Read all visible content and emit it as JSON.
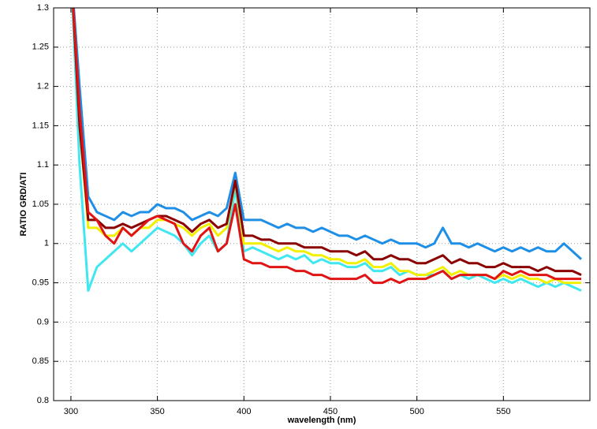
{
  "chart_data": {
    "type": "line",
    "xlabel": "wavelength (nm)",
    "ylabel": "RATIO GRD/ATI",
    "x": [
      300,
      305,
      310,
      315,
      320,
      325,
      330,
      335,
      340,
      345,
      350,
      355,
      360,
      365,
      370,
      375,
      380,
      385,
      390,
      395,
      400,
      405,
      410,
      415,
      420,
      425,
      430,
      435,
      440,
      445,
      450,
      455,
      460,
      465,
      470,
      475,
      480,
      485,
      490,
      495,
      500,
      505,
      510,
      515,
      520,
      525,
      530,
      535,
      540,
      545,
      550,
      555,
      560,
      565,
      570,
      575,
      580,
      585,
      590,
      595
    ],
    "series": [
      {
        "color": "#1e8fe6",
        "values": [
          1.35,
          1.2,
          1.06,
          1.04,
          1.035,
          1.03,
          1.04,
          1.035,
          1.04,
          1.04,
          1.05,
          1.045,
          1.045,
          1.04,
          1.03,
          1.035,
          1.04,
          1.035,
          1.045,
          1.09,
          1.03,
          1.03,
          1.03,
          1.025,
          1.02,
          1.025,
          1.02,
          1.02,
          1.015,
          1.02,
          1.015,
          1.01,
          1.01,
          1.005,
          1.01,
          1.005,
          1.0,
          1.005,
          1.0,
          1.0,
          1.0,
          0.995,
          1.0,
          1.02,
          1.0,
          1.0,
          0.995,
          1.0,
          0.995,
          0.99,
          0.995,
          0.99,
          0.995,
          0.99,
          0.995,
          0.99,
          0.99,
          1.0,
          0.99,
          0.98
        ]
      },
      {
        "color": "#40e6f0",
        "values": [
          1.35,
          1.1,
          0.94,
          0.97,
          0.98,
          0.99,
          1.0,
          0.99,
          1.0,
          1.01,
          1.02,
          1.015,
          1.01,
          1.0,
          0.985,
          1.0,
          1.01,
          0.99,
          1.0,
          1.07,
          0.99,
          0.995,
          0.99,
          0.985,
          0.98,
          0.985,
          0.98,
          0.985,
          0.975,
          0.98,
          0.975,
          0.975,
          0.97,
          0.97,
          0.975,
          0.965,
          0.965,
          0.97,
          0.96,
          0.965,
          0.96,
          0.96,
          0.96,
          0.965,
          0.955,
          0.96,
          0.955,
          0.96,
          0.955,
          0.95,
          0.955,
          0.95,
          0.955,
          0.95,
          0.945,
          0.95,
          0.945,
          0.95,
          0.945,
          0.94
        ]
      },
      {
        "color": "#f2f000",
        "values": [
          1.35,
          1.15,
          1.02,
          1.02,
          1.01,
          1.01,
          1.02,
          1.01,
          1.02,
          1.02,
          1.03,
          1.03,
          1.025,
          1.02,
          1.01,
          1.02,
          1.025,
          1.01,
          1.02,
          1.08,
          1.0,
          1.0,
          1.0,
          0.995,
          0.99,
          0.995,
          0.99,
          0.99,
          0.985,
          0.985,
          0.98,
          0.98,
          0.975,
          0.975,
          0.98,
          0.97,
          0.97,
          0.975,
          0.965,
          0.965,
          0.96,
          0.96,
          0.965,
          0.97,
          0.96,
          0.965,
          0.96,
          0.96,
          0.96,
          0.955,
          0.96,
          0.955,
          0.96,
          0.955,
          0.955,
          0.95,
          0.955,
          0.95,
          0.95,
          0.95
        ]
      },
      {
        "color": "#8b0000",
        "values": [
          1.35,
          1.15,
          1.03,
          1.03,
          1.02,
          1.02,
          1.025,
          1.02,
          1.025,
          1.03,
          1.035,
          1.035,
          1.03,
          1.025,
          1.015,
          1.025,
          1.03,
          1.02,
          1.025,
          1.08,
          1.01,
          1.01,
          1.005,
          1.005,
          1.0,
          1.0,
          1.0,
          0.995,
          0.995,
          0.995,
          0.99,
          0.99,
          0.99,
          0.985,
          0.99,
          0.98,
          0.98,
          0.985,
          0.98,
          0.98,
          0.975,
          0.975,
          0.98,
          0.985,
          0.975,
          0.98,
          0.975,
          0.975,
          0.97,
          0.97,
          0.975,
          0.97,
          0.97,
          0.97,
          0.965,
          0.97,
          0.965,
          0.965,
          0.965,
          0.96
        ]
      },
      {
        "color": "#e01414",
        "values": [
          1.35,
          1.17,
          1.04,
          1.03,
          1.01,
          1.0,
          1.02,
          1.01,
          1.02,
          1.03,
          1.035,
          1.03,
          1.025,
          1.0,
          0.99,
          1.01,
          1.02,
          0.99,
          1.0,
          1.05,
          0.98,
          0.975,
          0.975,
          0.97,
          0.97,
          0.97,
          0.965,
          0.965,
          0.96,
          0.96,
          0.955,
          0.955,
          0.955,
          0.955,
          0.96,
          0.95,
          0.95,
          0.955,
          0.95,
          0.955,
          0.955,
          0.955,
          0.96,
          0.965,
          0.955,
          0.96,
          0.96,
          0.96,
          0.96,
          0.955,
          0.965,
          0.96,
          0.965,
          0.96,
          0.96,
          0.96,
          0.955,
          0.955,
          0.955,
          0.955
        ]
      }
    ],
    "xlim": [
      290,
      600
    ],
    "xticks": [
      300,
      350,
      400,
      450,
      500,
      550
    ],
    "ylim": [
      0.8,
      1.3
    ],
    "yticks": [
      0.8,
      0.85,
      0.9,
      0.95,
      1,
      1.05,
      1.1,
      1.15,
      1.2,
      1.25,
      1.3
    ],
    "grid": true
  }
}
